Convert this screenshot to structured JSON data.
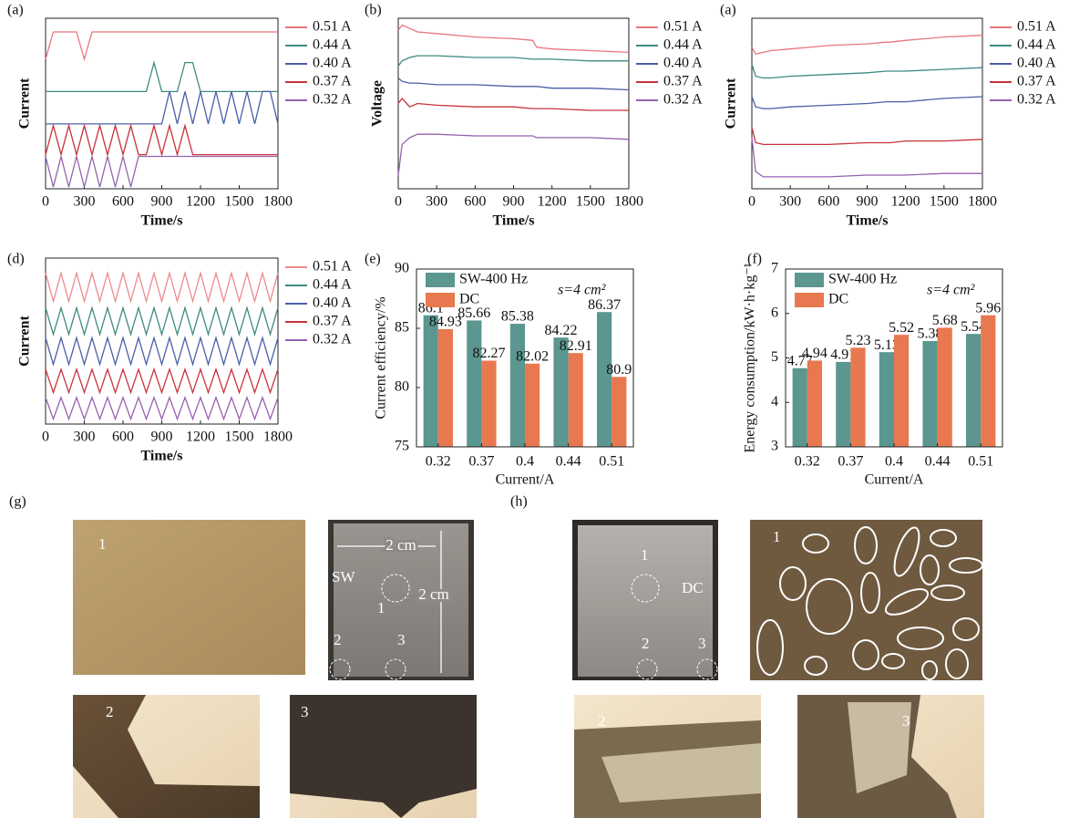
{
  "chart_data": [
    {
      "type": "line",
      "label": "(a)",
      "xlabel": "Time/s",
      "ylabel": "Current",
      "xlim": [
        0,
        1800
      ],
      "xticks": [
        0,
        300,
        600,
        900,
        1200,
        1500,
        1800
      ],
      "ylim": [
        0,
        10
      ],
      "x": [
        0,
        60,
        120,
        180,
        240,
        300,
        360,
        420,
        480,
        540,
        600,
        660,
        720,
        780,
        840,
        900,
        960,
        1020,
        1080,
        1140,
        1200,
        1260,
        1320,
        1380,
        1440,
        1500,
        1560,
        1620,
        1680,
        1740,
        1800
      ],
      "series": [
        {
          "name": "0.51 A",
          "color": "#e8767a",
          "values": [
            7.6,
            9.2,
            9.2,
            9.2,
            9.2,
            7.6,
            9.2,
            9.2,
            9.2,
            9.2,
            9.2,
            9.2,
            9.2,
            9.2,
            9.2,
            9.2,
            9.2,
            9.2,
            9.2,
            9.2,
            9.2,
            9.2,
            9.2,
            9.2,
            9.2,
            9.2,
            9.2,
            9.2,
            9.2,
            9.2,
            9.2
          ]
        },
        {
          "name": "0.44 A",
          "color": "#3e8a80",
          "values": [
            5.7,
            5.7,
            5.7,
            5.7,
            5.7,
            5.7,
            5.7,
            5.7,
            5.7,
            5.7,
            5.7,
            5.7,
            5.7,
            5.7,
            7.4,
            5.7,
            5.7,
            5.7,
            7.4,
            7.4,
            5.7,
            5.7,
            5.7,
            5.7,
            5.7,
            5.7,
            5.7,
            5.7,
            5.7,
            5.7,
            5.7
          ]
        },
        {
          "name": "0.40 A",
          "color": "#4a5ea8",
          "values": [
            3.8,
            3.8,
            3.8,
            3.8,
            3.8,
            3.8,
            3.8,
            3.8,
            3.8,
            3.8,
            3.8,
            3.8,
            3.8,
            3.8,
            3.8,
            3.8,
            5.7,
            3.8,
            5.7,
            3.8,
            5.7,
            3.8,
            5.7,
            3.8,
            5.7,
            3.8,
            5.7,
            3.8,
            5.7,
            5.7,
            3.8
          ]
        },
        {
          "name": "0.37 A",
          "color": "#c8323c",
          "values": [
            2.0,
            3.7,
            2.0,
            3.7,
            2.0,
            3.7,
            2.0,
            3.7,
            2.0,
            3.7,
            2.0,
            3.7,
            2.0,
            2.0,
            3.7,
            2.0,
            3.7,
            2.0,
            3.7,
            2.0,
            2.0,
            2.0,
            2.0,
            2.0,
            2.0,
            2.0,
            2.0,
            2.0,
            2.0,
            2.0,
            2.0
          ]
        },
        {
          "name": "0.32 A",
          "color": "#9561b0",
          "values": [
            1.9,
            0.1,
            1.9,
            0.1,
            1.9,
            0.1,
            1.9,
            0.1,
            1.9,
            0.1,
            1.9,
            0.1,
            1.9,
            1.9,
            1.9,
            1.9,
            1.9,
            1.9,
            1.9,
            1.9,
            1.9,
            1.9,
            1.9,
            1.9,
            1.9,
            1.9,
            1.9,
            1.9,
            1.9,
            1.9,
            1.9
          ]
        }
      ]
    },
    {
      "type": "line",
      "label": "(b)",
      "xlabel": "Time/s",
      "ylabel": "Voltage",
      "xlim": [
        0,
        1800
      ],
      "xticks": [
        0,
        300,
        600,
        900,
        1200,
        1500,
        1800
      ],
      "ylim": [
        0,
        10
      ],
      "x": [
        0,
        30,
        90,
        150,
        300,
        600,
        900,
        1050,
        1080,
        1200,
        1500,
        1800
      ],
      "series": [
        {
          "name": "0.51 A",
          "color": "#e8767a",
          "values": [
            9.3,
            9.6,
            9.4,
            9.2,
            9.1,
            8.9,
            8.8,
            8.7,
            8.3,
            8.2,
            8.1,
            8.0
          ]
        },
        {
          "name": "0.44 A",
          "color": "#3e8a80",
          "values": [
            7.2,
            7.5,
            7.7,
            7.8,
            7.8,
            7.7,
            7.7,
            7.6,
            7.6,
            7.6,
            7.5,
            7.5
          ]
        },
        {
          "name": "0.40 A",
          "color": "#4a5ea8",
          "values": [
            6.5,
            6.3,
            6.2,
            6.2,
            6.1,
            6.1,
            6.0,
            6.0,
            6.0,
            5.9,
            5.9,
            5.8
          ]
        },
        {
          "name": "0.37 A",
          "color": "#c8323c",
          "values": [
            5.0,
            5.3,
            4.8,
            5.0,
            4.9,
            4.8,
            4.8,
            4.7,
            4.7,
            4.7,
            4.6,
            4.6
          ]
        },
        {
          "name": "0.32 A",
          "color": "#9561b0",
          "values": [
            0.8,
            2.6,
            3.0,
            3.2,
            3.2,
            3.1,
            3.1,
            3.1,
            3.0,
            3.0,
            3.0,
            2.9
          ]
        }
      ]
    },
    {
      "type": "line",
      "label": "(a)",
      "xlabel": "Time/s",
      "ylabel": "Current",
      "xlim": [
        0,
        1800
      ],
      "xticks": [
        0,
        300,
        600,
        900,
        1200,
        1500,
        1800
      ],
      "ylim": [
        0,
        10
      ],
      "x": [
        0,
        30,
        90,
        150,
        300,
        600,
        900,
        1050,
        1080,
        1200,
        1500,
        1800
      ],
      "series": [
        {
          "name": "0.51 A",
          "color": "#e8767a",
          "values": [
            8.3,
            7.9,
            8.0,
            8.1,
            8.2,
            8.4,
            8.5,
            8.6,
            8.6,
            8.7,
            8.9,
            9.0
          ]
        },
        {
          "name": "0.44 A",
          "color": "#3e8a80",
          "values": [
            7.3,
            6.6,
            6.5,
            6.5,
            6.6,
            6.7,
            6.8,
            6.9,
            6.9,
            6.9,
            7.0,
            7.1
          ]
        },
        {
          "name": "0.40 A",
          "color": "#4a5ea8",
          "values": [
            5.4,
            4.8,
            4.7,
            4.7,
            4.8,
            4.9,
            5.0,
            5.1,
            5.1,
            5.1,
            5.3,
            5.4
          ]
        },
        {
          "name": "0.37 A",
          "color": "#c8323c",
          "values": [
            3.6,
            2.7,
            2.6,
            2.6,
            2.6,
            2.6,
            2.7,
            2.7,
            2.7,
            2.8,
            2.8,
            2.9
          ]
        },
        {
          "name": "0.32 A",
          "color": "#9561b0",
          "values": [
            3.0,
            1.0,
            0.7,
            0.7,
            0.7,
            0.7,
            0.8,
            0.8,
            0.8,
            0.8,
            0.9,
            0.9
          ]
        }
      ]
    },
    {
      "type": "line",
      "label": "(d)",
      "xlabel": "Time/s",
      "ylabel": "Current",
      "xlim": [
        0,
        1800
      ],
      "xticks": [
        0,
        300,
        600,
        900,
        1200,
        1500,
        1800
      ],
      "ylim": [
        0,
        10
      ],
      "x": [
        0,
        60,
        120,
        180,
        240,
        300,
        360,
        420,
        480,
        540,
        600,
        660,
        720,
        780,
        840,
        900,
        960,
        1020,
        1080,
        1140,
        1200,
        1260,
        1320,
        1380,
        1440,
        1500,
        1560,
        1620,
        1680,
        1740,
        1800
      ],
      "series": [
        {
          "name": "0.51 A",
          "color": "#ec8a8e",
          "values": [
            9.1,
            7.4,
            9.1,
            7.4,
            9.1,
            7.4,
            9.1,
            7.4,
            9.1,
            7.4,
            9.1,
            7.4,
            9.1,
            7.4,
            9.1,
            7.4,
            9.1,
            7.4,
            9.1,
            7.4,
            9.1,
            7.4,
            9.1,
            7.4,
            9.1,
            7.4,
            9.1,
            7.4,
            9.1,
            7.4,
            9.1
          ]
        },
        {
          "name": "0.44 A",
          "color": "#3e8a80",
          "values": [
            7.0,
            5.4,
            7.0,
            5.4,
            7.0,
            5.4,
            7.0,
            5.4,
            7.0,
            5.4,
            7.0,
            5.4,
            7.0,
            5.4,
            7.0,
            5.4,
            7.0,
            5.4,
            7.0,
            5.4,
            7.0,
            5.4,
            7.0,
            5.4,
            7.0,
            5.4,
            7.0,
            5.4,
            7.0,
            5.4,
            7.0
          ]
        },
        {
          "name": "0.40 A",
          "color": "#4a5ea8",
          "values": [
            5.2,
            3.6,
            5.2,
            3.6,
            5.2,
            3.6,
            5.2,
            3.6,
            5.2,
            3.6,
            5.2,
            3.6,
            5.2,
            3.6,
            5.2,
            3.6,
            5.2,
            3.6,
            5.2,
            3.6,
            5.2,
            3.6,
            5.2,
            3.6,
            5.2,
            3.6,
            5.2,
            3.6,
            5.2,
            3.6,
            5.2
          ]
        },
        {
          "name": "0.37 A",
          "color": "#c8323c",
          "values": [
            3.3,
            1.9,
            3.3,
            1.9,
            3.3,
            1.9,
            3.3,
            1.9,
            3.3,
            1.9,
            3.3,
            1.9,
            3.3,
            1.9,
            3.3,
            1.9,
            3.3,
            1.9,
            3.3,
            1.9,
            3.3,
            1.9,
            3.3,
            1.9,
            3.3,
            1.9,
            3.3,
            1.9,
            3.3,
            1.9,
            3.3
          ]
        },
        {
          "name": "0.32 A",
          "color": "#9561b0",
          "values": [
            1.6,
            0.3,
            1.6,
            0.3,
            1.6,
            0.3,
            1.6,
            0.3,
            1.6,
            0.3,
            1.6,
            0.3,
            1.6,
            0.3,
            1.6,
            0.3,
            1.6,
            0.3,
            1.6,
            0.3,
            1.6,
            0.3,
            1.6,
            0.3,
            1.6,
            0.3,
            1.6,
            0.3,
            1.6,
            0.3,
            1.6
          ]
        }
      ]
    },
    {
      "type": "bar",
      "label": "(e)",
      "xlabel": "Current/A",
      "ylabel": "Current efficiency/%",
      "annotation": "s=4 cm²",
      "categories": [
        "0.32",
        "0.37",
        "0.4",
        "0.44",
        "0.51"
      ],
      "ylim": [
        75,
        90
      ],
      "yticks": [
        75,
        80,
        85,
        90
      ],
      "series": [
        {
          "name": "SW-400 Hz",
          "color": "#5b9690",
          "values": [
            86.1,
            85.66,
            85.38,
            84.22,
            86.37
          ]
        },
        {
          "name": "DC",
          "color": "#e8784f",
          "values": [
            84.93,
            82.27,
            82.02,
            82.91,
            80.9
          ]
        }
      ]
    },
    {
      "type": "bar",
      "label": "(f)",
      "xlabel": "Current/A",
      "ylabel": "Energy consumption/kW·h·kg⁻¹",
      "annotation": "s=4 cm²",
      "categories": [
        "0.32",
        "0.37",
        "0.4",
        "0.44",
        "0.51"
      ],
      "ylim": [
        3,
        7
      ],
      "yticks": [
        3,
        4,
        5,
        6,
        7
      ],
      "series": [
        {
          "name": "SW-400 Hz",
          "color": "#5b9690",
          "values": [
            4.77,
            4.91,
            5.13,
            5.38,
            5.54
          ]
        },
        {
          "name": "DC",
          "color": "#e8784f",
          "values": [
            4.94,
            5.23,
            5.52,
            5.68,
            5.96
          ]
        }
      ]
    }
  ],
  "figure_g": {
    "label": "(g)",
    "micrograph_1": "1",
    "sample": {
      "width": "2 cm",
      "height": "2 cm",
      "name": "SW",
      "site_1": "1",
      "site_2": "2",
      "site_3": "3"
    },
    "micrograph_2": "2",
    "micrograph_3": "3"
  },
  "figure_h": {
    "label": "(h)",
    "sample": {
      "name": "DC",
      "site_1": "1",
      "site_2": "2",
      "site_3": "3"
    },
    "micrograph_1": "1",
    "micrograph_2": "2",
    "micrograph_3": "3"
  }
}
